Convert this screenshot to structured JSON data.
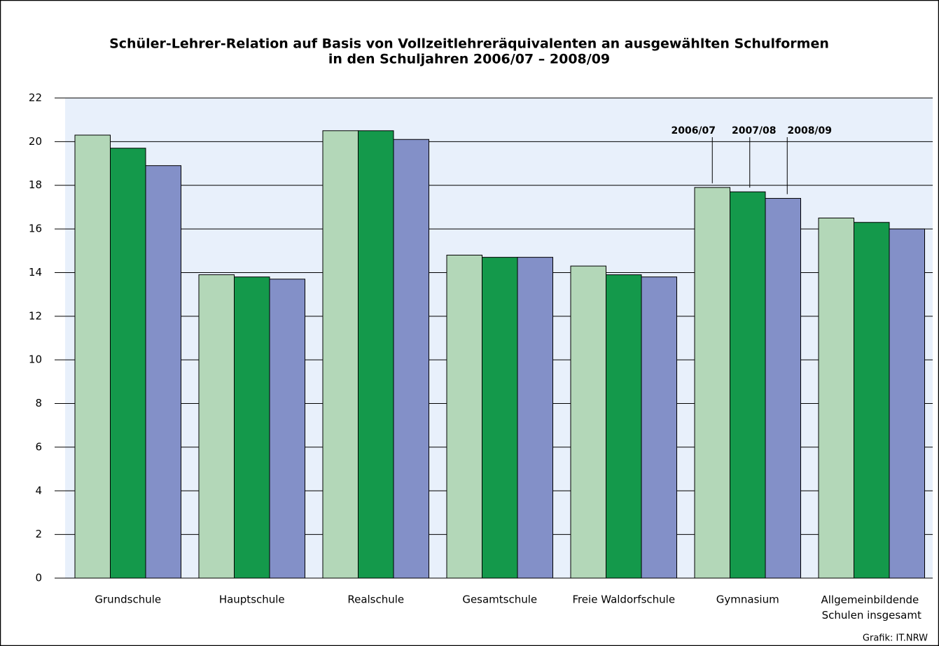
{
  "chart_data": {
    "type": "bar",
    "title": "Schüler-Lehrer-Relation auf Basis von Vollzeitlehreräquivalenten an ausgewählten Schulformen",
    "subtitle": "in den Schuljahren 2006/07 – 2008/09",
    "categories": [
      "Grundschule",
      "Hauptschule",
      "Realschule",
      "Gesamtschule",
      "Freie Waldorfschule",
      "Gymnasium",
      "Allgemeinbildende Schulen insgesamt"
    ],
    "series": [
      {
        "name": "2006/07",
        "color": "#b3d7b8",
        "values": [
          20.3,
          13.9,
          20.5,
          14.8,
          14.3,
          17.9,
          16.5
        ]
      },
      {
        "name": "2007/08",
        "color": "#14994b",
        "values": [
          19.7,
          13.8,
          20.5,
          14.7,
          13.9,
          17.7,
          16.3
        ]
      },
      {
        "name": "2008/09",
        "color": "#8390c8",
        "values": [
          18.9,
          13.7,
          20.1,
          14.7,
          13.8,
          17.4,
          16.0
        ]
      }
    ],
    "ylim": [
      0,
      22
    ],
    "yticks": [
      0,
      2,
      4,
      6,
      8,
      10,
      12,
      14,
      16,
      18,
      20,
      22
    ],
    "grid": true,
    "source": "Grafik: IT.NRW"
  }
}
